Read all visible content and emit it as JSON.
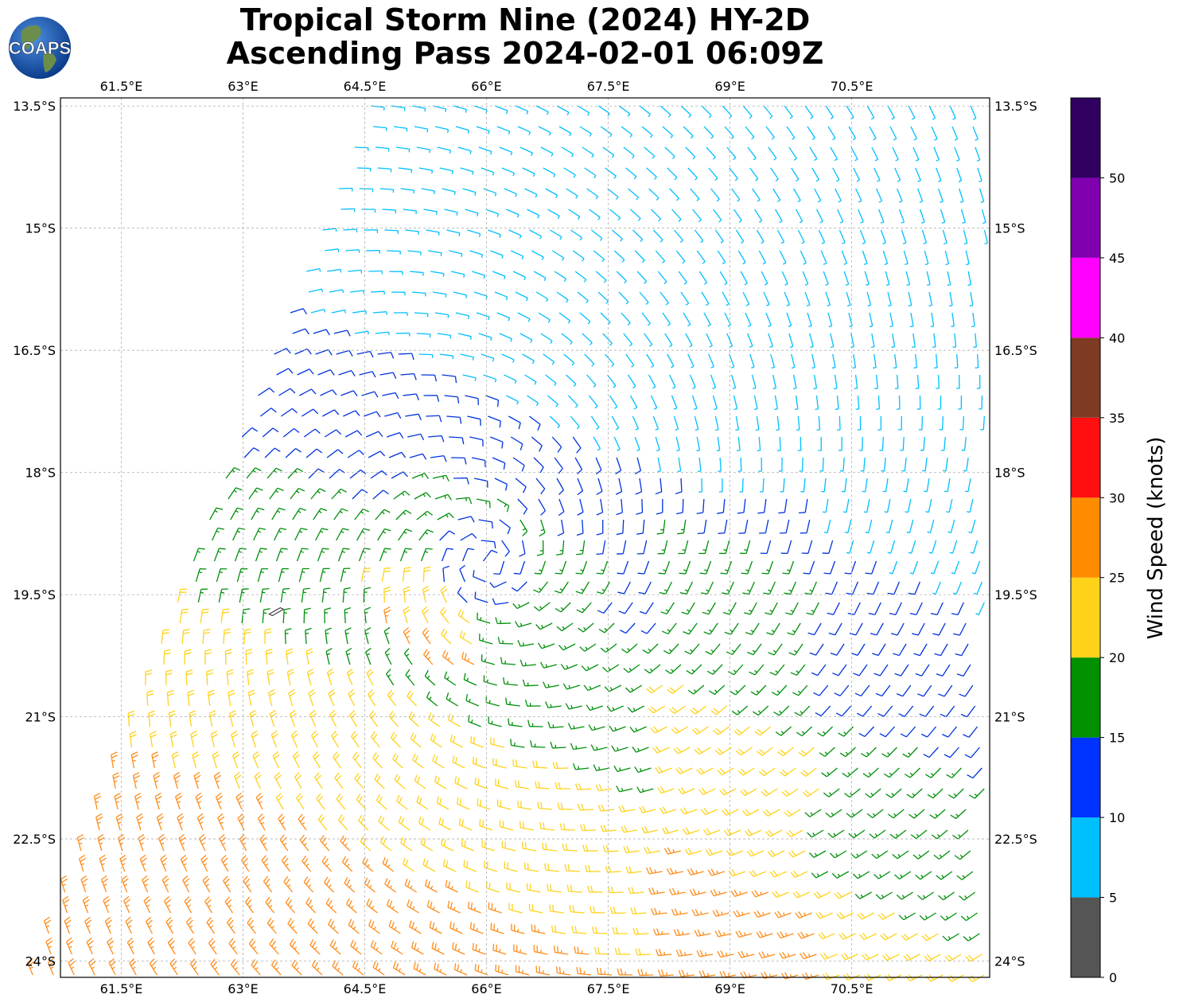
{
  "title": {
    "line1": "Tropical Storm Nine (2024) HY-2D",
    "line2": "Ascending Pass 2024-02-01 06:09Z"
  },
  "logo": {
    "text": "COAPS"
  },
  "map": {
    "lon_range": [
      60.75,
      72.2
    ],
    "lat_range": [
      -24.2,
      -13.4
    ],
    "lon_ticks": [
      "61.5°E",
      "63°E",
      "64.5°E",
      "66°E",
      "67.5°E",
      "69°E",
      "70.5°E"
    ],
    "lon_values": [
      61.5,
      63,
      64.5,
      66,
      67.5,
      69,
      70.5
    ],
    "lat_ticks": [
      "13.5°S",
      "15°S",
      "16.5°S",
      "18°S",
      "19.5°S",
      "21°S",
      "22.5°S",
      "24°S"
    ],
    "lat_values": [
      -13.5,
      -15,
      -16.5,
      -18,
      -19.5,
      -21,
      -22.5,
      -24
    ],
    "gridlines": true,
    "storm_center": {
      "lon": 66.0,
      "lat": -19.1
    },
    "island": {
      "name": "",
      "lon": 63.4,
      "lat": -19.7
    }
  },
  "colorbar": {
    "label": "Wind Speed (knots)",
    "tick_labels": [
      "0",
      "5",
      "10",
      "15",
      "20",
      "25",
      "30",
      "35",
      "40",
      "45",
      "50"
    ],
    "bins": [
      {
        "from": 0,
        "to": 5,
        "color": "#555555"
      },
      {
        "from": 5,
        "to": 10,
        "color": "#00bfff"
      },
      {
        "from": 10,
        "to": 15,
        "color": "#0033ff"
      },
      {
        "from": 15,
        "to": 20,
        "color": "#009000"
      },
      {
        "from": 20,
        "to": 25,
        "color": "#ffd21a"
      },
      {
        "from": 25,
        "to": 30,
        "color": "#ff8c00"
      },
      {
        "from": 30,
        "to": 35,
        "color": "#ff0f0f"
      },
      {
        "from": 35,
        "to": 40,
        "color": "#7e3a22"
      },
      {
        "from": 40,
        "to": 45,
        "color": "#ff00ff"
      },
      {
        "from": 45,
        "to": 50,
        "color": "#8000b0"
      },
      {
        "from": 50,
        "to": 55,
        "color": "#300060"
      }
    ]
  },
  "wind_colors": {
    "calm": "#00bfff",
    "light": "#0033dd",
    "moderate": "#00900a",
    "fresh": "#ffd21a",
    "strong": "#ff8c1a"
  }
}
